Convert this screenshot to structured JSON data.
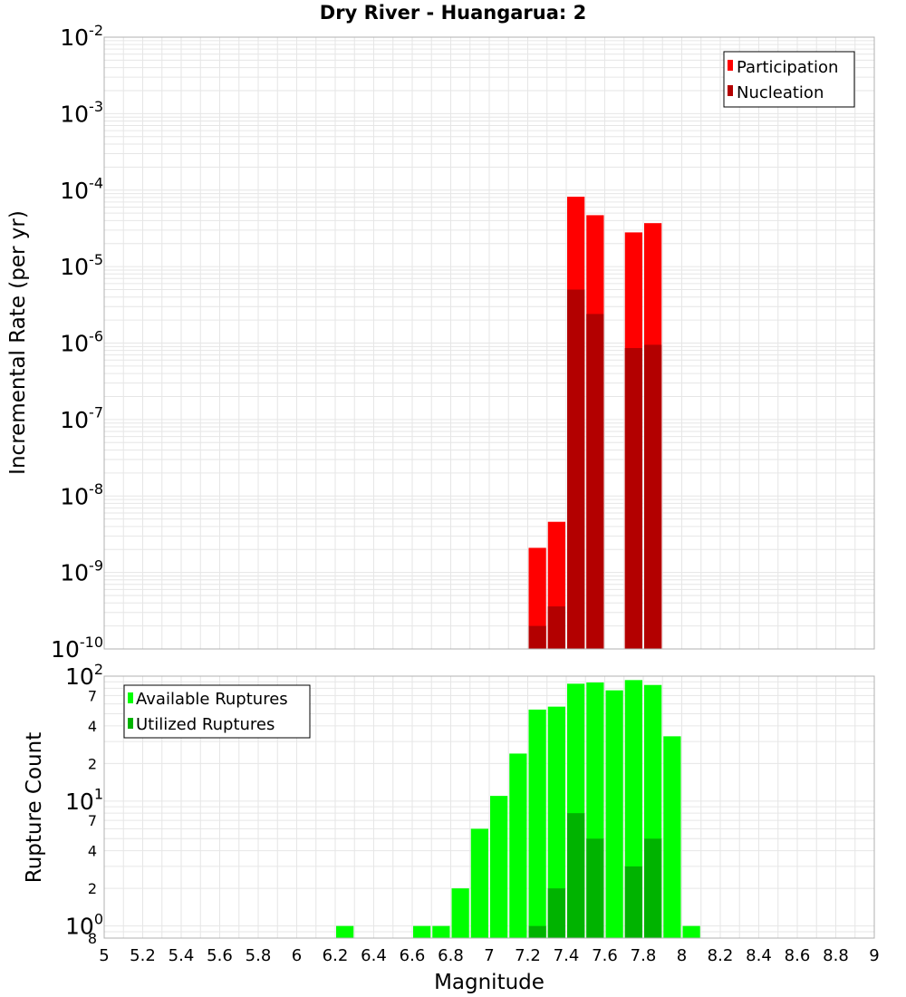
{
  "title": "Dry River - Huangarua: 2",
  "colors": {
    "participation": "#ff0000",
    "nucleation": "#b30000",
    "available": "#00ff00",
    "utilized": "#00b300",
    "grid": "#e6e6e6",
    "frame": "#b0b0b0"
  },
  "chart_data": [
    {
      "type": "bar",
      "title": "Dry River - Huangarua: 2",
      "xlabel": "Magnitude",
      "ylabel": "Incremental Rate (per yr)",
      "yscale": "log",
      "ylim": [
        1e-10,
        0.01
      ],
      "xlim": [
        5,
        9
      ],
      "bin_width": 0.1,
      "y_ticks": [
        {
          "base": "10",
          "exp": "-10",
          "value": 1e-10
        },
        {
          "base": "10",
          "exp": "-9",
          "value": 1e-09
        },
        {
          "base": "10",
          "exp": "-8",
          "value": 1e-08
        },
        {
          "base": "10",
          "exp": "-7",
          "value": 1e-07
        },
        {
          "base": "10",
          "exp": "-6",
          "value": 1e-06
        },
        {
          "base": "10",
          "exp": "-5",
          "value": 1e-05
        },
        {
          "base": "10",
          "exp": "-4",
          "value": 0.0001
        },
        {
          "base": "10",
          "exp": "-3",
          "value": 0.001
        },
        {
          "base": "10",
          "exp": "-2",
          "value": 0.01
        }
      ],
      "legend": {
        "placement": "top-right",
        "entries": [
          "Participation",
          "Nucleation"
        ]
      },
      "series": [
        {
          "name": "Participation",
          "color": "#ff0000",
          "x": [
            7.25,
            7.35,
            7.45,
            7.55,
            7.75,
            7.85
          ],
          "values": [
            2.1e-09,
            4.6e-09,
            8.2e-05,
            4.7e-05,
            2.8e-05,
            3.7e-05
          ]
        },
        {
          "name": "Nucleation",
          "color": "#b30000",
          "x": [
            7.25,
            7.35,
            7.45,
            7.55,
            7.75,
            7.85
          ],
          "values": [
            2e-10,
            3.6e-10,
            5e-06,
            2.4e-06,
            8.6e-07,
            9.5e-07
          ]
        }
      ]
    },
    {
      "type": "bar",
      "xlabel": "Magnitude",
      "ylabel": "Rupture Count",
      "yscale": "log",
      "ylim": [
        0.8,
        100
      ],
      "xlim": [
        5,
        9
      ],
      "bin_width": 0.1,
      "x_ticks": [
        "5",
        "5.2",
        "5.4",
        "5.6",
        "5.8",
        "6",
        "6.2",
        "6.4",
        "6.6",
        "6.8",
        "7",
        "7.2",
        "7.4",
        "7.6",
        "7.8",
        "8",
        "8.2",
        "8.4",
        "8.6",
        "8.8",
        "9"
      ],
      "y_major_ticks": [
        {
          "base": "10",
          "exp": "0",
          "value": 1
        },
        {
          "base": "10",
          "exp": "1",
          "value": 10
        },
        {
          "base": "10",
          "exp": "2",
          "value": 100
        }
      ],
      "y_minor_labels": [
        {
          "label": "8",
          "value": 0.8
        },
        {
          "label": "2",
          "value": 2
        },
        {
          "label": "4",
          "value": 4
        },
        {
          "label": "7",
          "value": 7
        },
        {
          "label": "2",
          "value": 20
        },
        {
          "label": "4",
          "value": 40
        },
        {
          "label": "7",
          "value": 70
        }
      ],
      "legend": {
        "placement": "top-left",
        "entries": [
          "Available Ruptures",
          "Utilized Ruptures"
        ]
      },
      "series": [
        {
          "name": "Available Ruptures",
          "color": "#00ff00",
          "x": [
            6.25,
            6.65,
            6.75,
            6.85,
            6.95,
            7.05,
            7.15,
            7.25,
            7.35,
            7.45,
            7.55,
            7.65,
            7.75,
            7.85,
            7.95,
            8.05
          ],
          "values": [
            1,
            1,
            1,
            2,
            6,
            11,
            24,
            54,
            57,
            87,
            89,
            77,
            93,
            85,
            33,
            1
          ]
        },
        {
          "name": "Utilized Ruptures",
          "color": "#00b300",
          "x": [
            7.25,
            7.35,
            7.45,
            7.55,
            7.75,
            7.85
          ],
          "values": [
            1,
            2,
            8,
            5,
            3,
            5
          ]
        }
      ]
    }
  ]
}
